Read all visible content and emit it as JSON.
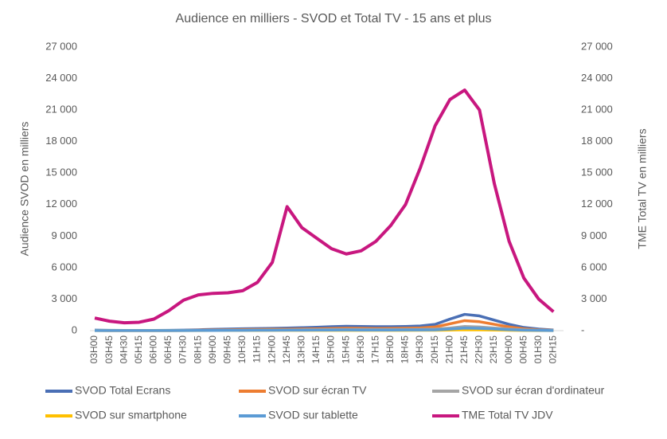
{
  "chart_data": {
    "type": "line",
    "title": "Audience en milliers - SVOD  et Total TV - 15 ans et plus",
    "y_label": "Audience SVOD en milliers",
    "y2_label": "TME Total TV en milliers",
    "categories": [
      "03H00",
      "03H45",
      "04H30",
      "05H15",
      "06H00",
      "06H45",
      "07H30",
      "08H15",
      "09H00",
      "09H45",
      "10H30",
      "11H15",
      "12H00",
      "12H45",
      "13H30",
      "14H15",
      "15H00",
      "15H45",
      "16H30",
      "17H15",
      "18H00",
      "18H45",
      "19H30",
      "20H15",
      "21H00",
      "21H45",
      "22H30",
      "23H15",
      "00H00",
      "00H45",
      "01H30",
      "02H15"
    ],
    "ylim": [
      0,
      27000
    ],
    "yticks": [
      {
        "value": 0,
        "label": "0"
      },
      {
        "value": 3000,
        "label": "3 000"
      },
      {
        "value": 6000,
        "label": "6 000"
      },
      {
        "value": 9000,
        "label": "9 000"
      },
      {
        "value": 12000,
        "label": "12 000"
      },
      {
        "value": 15000,
        "label": "15 000"
      },
      {
        "value": 18000,
        "label": "18 000"
      },
      {
        "value": 21000,
        "label": "21 000"
      },
      {
        "value": 24000,
        "label": "24 000"
      },
      {
        "value": 27000,
        "label": "27 000"
      }
    ],
    "y2lim": [
      0,
      27000
    ],
    "y2ticks": [
      {
        "value": 0,
        "label": "-"
      },
      {
        "value": 3000,
        "label": "3 000"
      },
      {
        "value": 6000,
        "label": "6 000"
      },
      {
        "value": 9000,
        "label": "9 000"
      },
      {
        "value": 12000,
        "label": "12 000"
      },
      {
        "value": 15000,
        "label": "15 000"
      },
      {
        "value": 18000,
        "label": "18 000"
      },
      {
        "value": 21000,
        "label": "21 000"
      },
      {
        "value": 24000,
        "label": "24 000"
      },
      {
        "value": 27000,
        "label": "27 000"
      }
    ],
    "series": [
      {
        "name": "SVOD Total Ecrans",
        "color": "#4a6fb5",
        "values": [
          50,
          30,
          20,
          20,
          20,
          30,
          50,
          80,
          120,
          150,
          180,
          200,
          220,
          250,
          280,
          320,
          380,
          420,
          400,
          380,
          380,
          400,
          450,
          600,
          1100,
          1550,
          1400,
          1000,
          600,
          300,
          150,
          60
        ]
      },
      {
        "name": "SVOD sur écran TV",
        "color": "#ed7d31",
        "values": [
          20,
          10,
          10,
          10,
          10,
          10,
          20,
          40,
          60,
          80,
          100,
          110,
          120,
          130,
          150,
          170,
          200,
          230,
          220,
          200,
          210,
          230,
          260,
          350,
          650,
          950,
          850,
          600,
          350,
          170,
          80,
          30
        ]
      },
      {
        "name": "SVOD sur écran d'ordinateur",
        "color": "#a5a5a5",
        "values": [
          15,
          10,
          5,
          5,
          5,
          10,
          15,
          20,
          30,
          40,
          50,
          55,
          60,
          70,
          80,
          90,
          100,
          110,
          110,
          100,
          100,
          110,
          120,
          150,
          250,
          400,
          350,
          250,
          150,
          80,
          40,
          15
        ]
      },
      {
        "name": "SVOD sur smartphone",
        "color": "#ffc000",
        "values": [
          5,
          5,
          5,
          5,
          5,
          5,
          10,
          10,
          15,
          15,
          20,
          20,
          25,
          25,
          25,
          25,
          30,
          30,
          30,
          30,
          30,
          30,
          35,
          40,
          60,
          90,
          80,
          60,
          40,
          20,
          10,
          5
        ]
      },
      {
        "name": "SVOD sur tablette",
        "color": "#5b9bd5",
        "values": [
          10,
          5,
          5,
          5,
          5,
          5,
          10,
          15,
          20,
          25,
          30,
          35,
          40,
          45,
          50,
          55,
          60,
          65,
          60,
          60,
          60,
          65,
          70,
          80,
          150,
          250,
          220,
          160,
          90,
          50,
          25,
          10
        ]
      },
      {
        "name": "TME Total TV JDV",
        "color": "#c8177f",
        "axis": "y2",
        "values": [
          1200,
          900,
          750,
          800,
          1100,
          1900,
          2900,
          3400,
          3550,
          3600,
          3800,
          4600,
          6500,
          11800,
          9800,
          8800,
          7800,
          7300,
          7600,
          8500,
          10000,
          12000,
          15500,
          19500,
          22000,
          22900,
          21000,
          14000,
          8500,
          5000,
          3000,
          1800
        ]
      }
    ]
  }
}
